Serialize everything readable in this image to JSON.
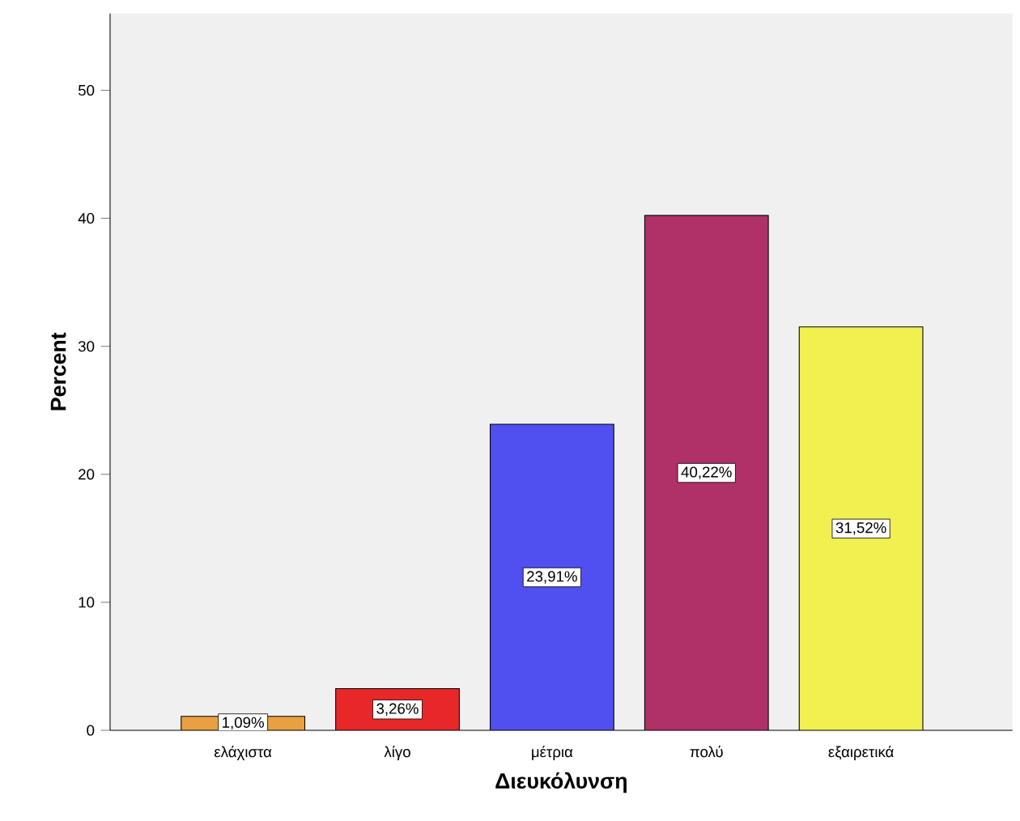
{
  "chart_data": {
    "type": "bar",
    "xlabel": "Διευκόλυνση",
    "ylabel": "Percent",
    "categories": [
      "ελάχιστα",
      "λίγο",
      "μέτρια",
      "πολύ",
      "εξαιρετικά"
    ],
    "values": [
      1.09,
      3.26,
      23.91,
      40.22,
      31.52
    ],
    "colors": [
      "#e8a040",
      "#e82828",
      "#5050f0",
      "#b03068",
      "#f0f050"
    ],
    "value_labels": [
      "1,09%",
      "3,26%",
      "23,91%",
      "40,22%",
      "31,52%"
    ],
    "ylim": [
      0,
      56
    ],
    "yticks": [
      0,
      10,
      20,
      30,
      40,
      50
    ],
    "grid": false
  }
}
